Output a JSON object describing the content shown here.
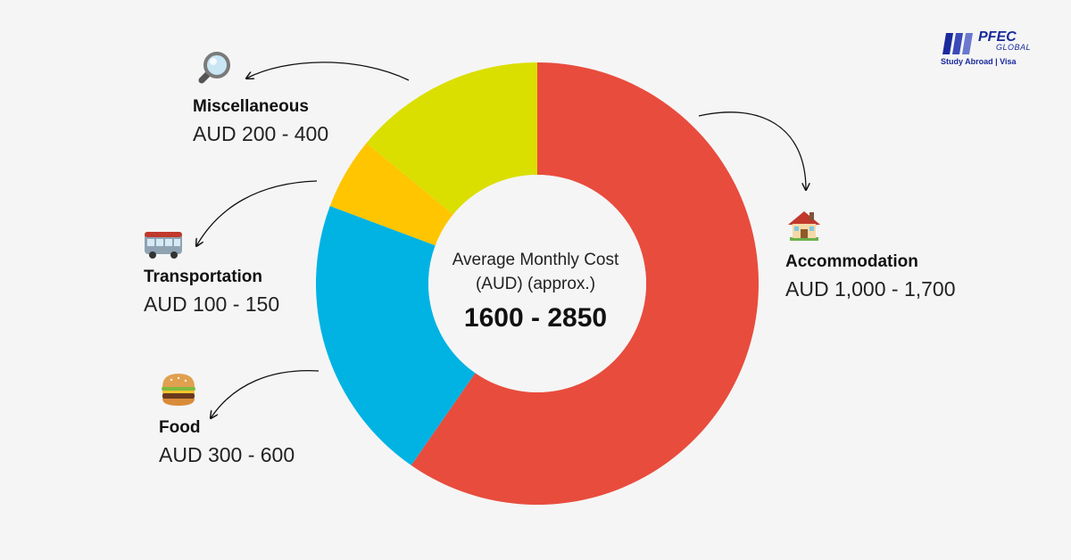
{
  "chart_data": {
    "type": "pie",
    "donut": true,
    "center": {
      "line1": "Average Monthly Cost",
      "line2": "(AUD) (approx.)",
      "total": "1600 - 2850"
    },
    "slices": [
      {
        "name": "Accommodation",
        "range": "AUD 1,000 - 1,700",
        "value": 1700,
        "color": "#e84c3d",
        "icon": "house-icon"
      },
      {
        "name": "Food",
        "range": "AUD 300 - 600",
        "value": 600,
        "color": "#00b3e3",
        "icon": "burger-icon"
      },
      {
        "name": "Transportation",
        "range": "AUD 100 - 150",
        "value": 150,
        "color": "#fec500",
        "icon": "bus-icon"
      },
      {
        "name": "Miscellaneous",
        "range": "AUD 200 - 400",
        "value": 400,
        "color": "#dadf00",
        "icon": "magnifier-icon"
      }
    ]
  },
  "logo": {
    "brand": "PFEC",
    "brand2": "GLOBAL",
    "tagline": "Study Abroad | Visa"
  }
}
